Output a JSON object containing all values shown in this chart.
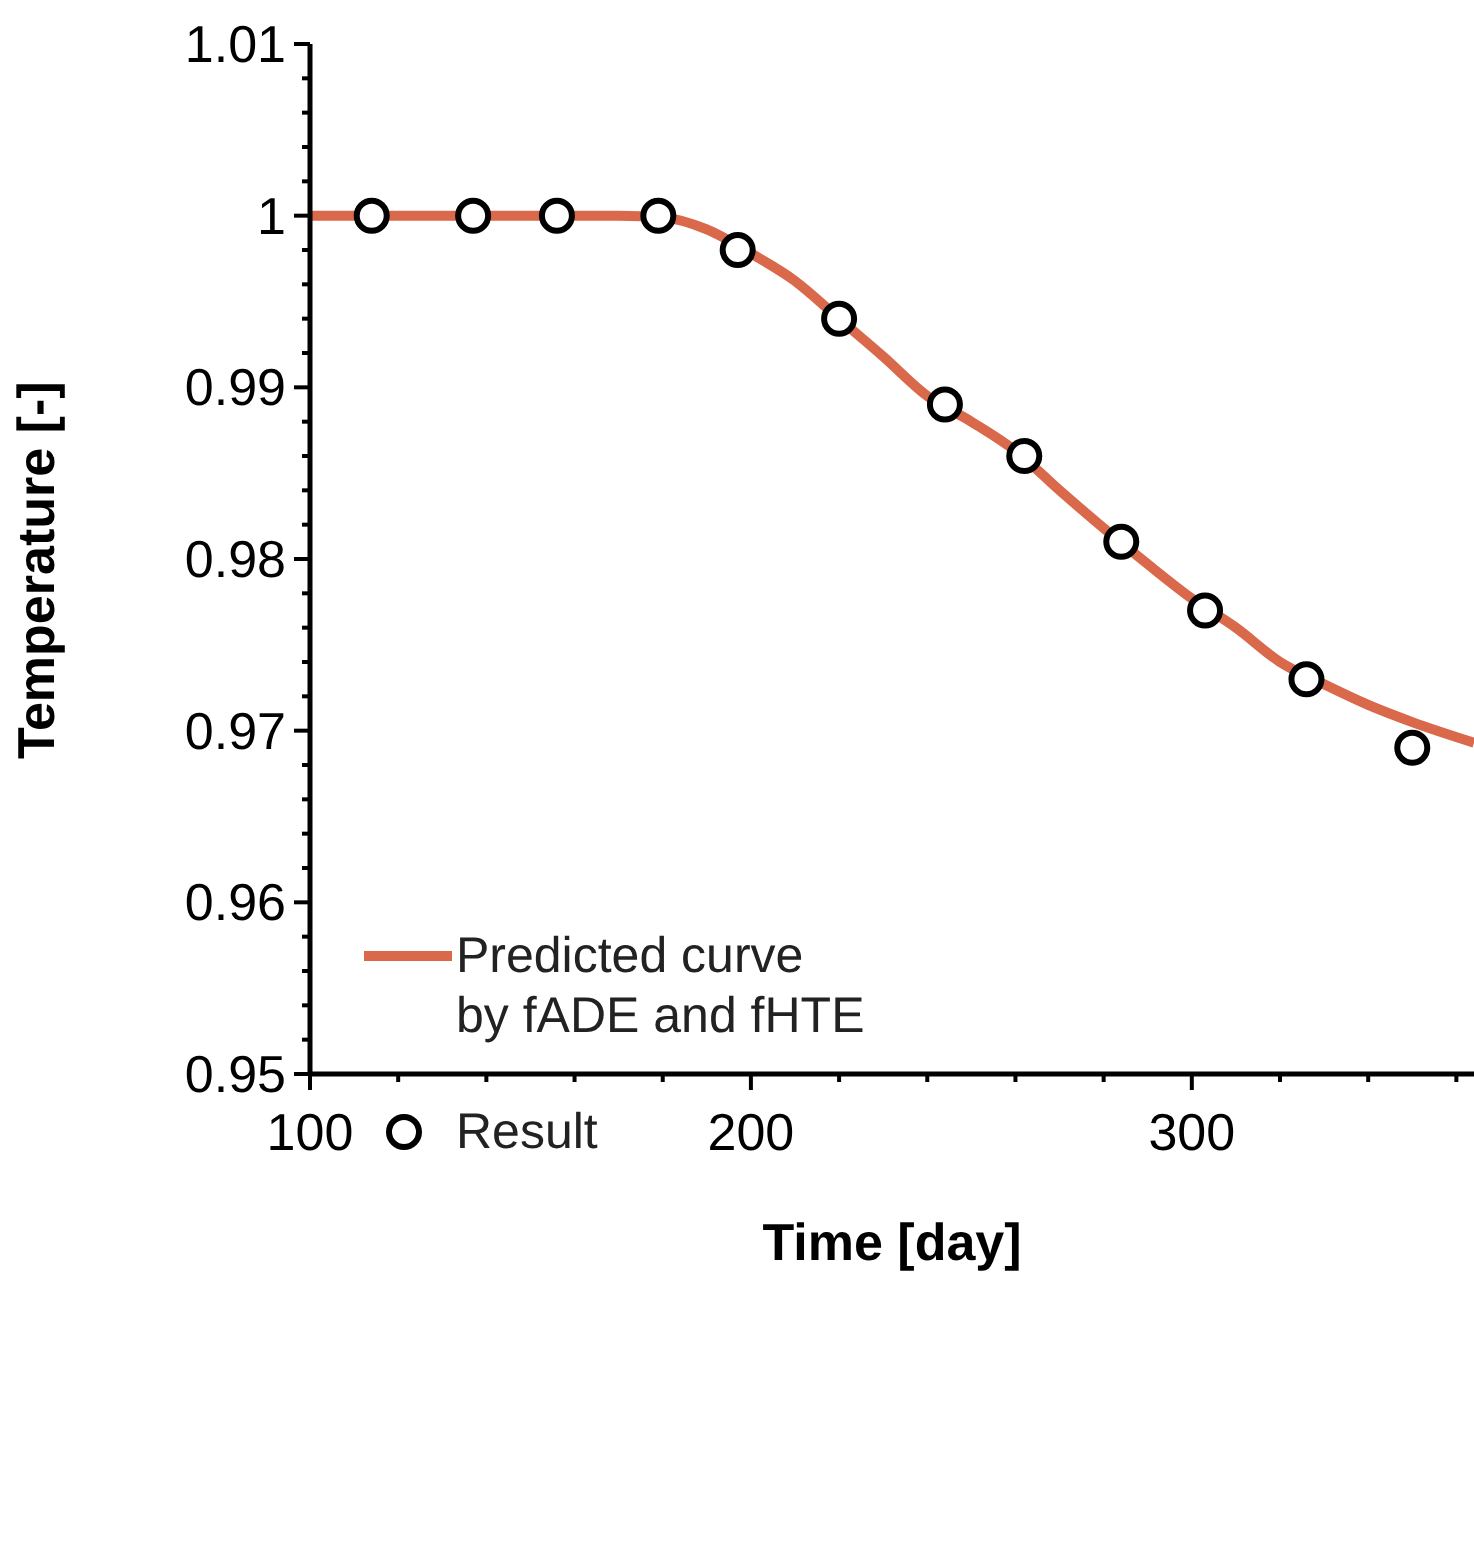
{
  "chart_data": {
    "type": "line",
    "xlabel": "Time [day]",
    "ylabel": "Temperature [-]",
    "xlim": [
      100,
      364
    ],
    "ylim": [
      0.95,
      1.01
    ],
    "xticks": [
      100,
      {
        "value": 120,
        "label": null
      },
      {
        "value": 140,
        "label": null
      },
      {
        "value": 160,
        "label": null
      },
      {
        "value": 180,
        "label": null
      },
      200,
      {
        "value": 220,
        "label": null
      },
      {
        "value": 240,
        "label": null
      },
      {
        "value": 260,
        "label": null
      },
      {
        "value": 280,
        "label": null
      },
      300,
      {
        "value": 320,
        "label": null
      },
      {
        "value": 340,
        "label": null
      },
      {
        "value": 360,
        "label": null
      }
    ],
    "yticks": [
      0.95,
      {
        "value": 0.952,
        "label": null
      },
      {
        "value": 0.954,
        "label": null
      },
      {
        "value": 0.956,
        "label": null
      },
      {
        "value": 0.958,
        "label": null
      },
      0.96,
      {
        "value": 0.962,
        "label": null
      },
      {
        "value": 0.964,
        "label": null
      },
      {
        "value": 0.966,
        "label": null
      },
      {
        "value": 0.968,
        "label": null
      },
      0.97,
      {
        "value": 0.972,
        "label": null
      },
      {
        "value": 0.974,
        "label": null
      },
      {
        "value": 0.976,
        "label": null
      },
      {
        "value": 0.978,
        "label": null
      },
      0.98,
      {
        "value": 0.982,
        "label": null
      },
      {
        "value": 0.984,
        "label": null
      },
      {
        "value": 0.986,
        "label": null
      },
      {
        "value": 0.988,
        "label": null
      },
      0.99,
      {
        "value": 0.992,
        "label": null
      },
      {
        "value": 0.994,
        "label": null
      },
      {
        "value": 0.996,
        "label": null
      },
      {
        "value": 0.998,
        "label": null
      },
      1,
      {
        "value": 1.002,
        "label": null
      },
      {
        "value": 1.004,
        "label": null
      },
      {
        "value": 1.006,
        "label": null
      },
      {
        "value": 1.008,
        "label": null
      },
      1.01
    ],
    "legend": "bottom left",
    "series": [
      {
        "name": "Predicted curve by fADE and fHTE",
        "color": "#d9694a",
        "marker": "none",
        "line_style": "solid",
        "x": [
          100,
          170,
          180,
          190,
          200,
          210,
          220,
          230,
          240,
          250,
          260,
          270,
          280,
          290,
          300,
          310,
          320,
          330,
          340,
          350,
          364
        ],
        "values": [
          1,
          1,
          0.9999,
          0.9992,
          0.9978,
          0.9962,
          0.994,
          0.9918,
          0.9895,
          0.988,
          0.9863,
          0.984,
          0.9818,
          0.9797,
          0.9777,
          0.976,
          0.974,
          0.9727,
          0.9715,
          0.9705,
          0.9693
        ]
      },
      {
        "name": "Result",
        "type": "scatter",
        "color": "#000000",
        "marker": "circle",
        "x": [
          114,
          137,
          156,
          179,
          197,
          220,
          244,
          262,
          284,
          303,
          326,
          350
        ],
        "values": [
          1,
          1,
          1,
          1,
          0.998,
          0.994,
          0.989,
          0.986,
          0.981,
          0.977,
          0.973,
          0.969
        ]
      }
    ]
  }
}
